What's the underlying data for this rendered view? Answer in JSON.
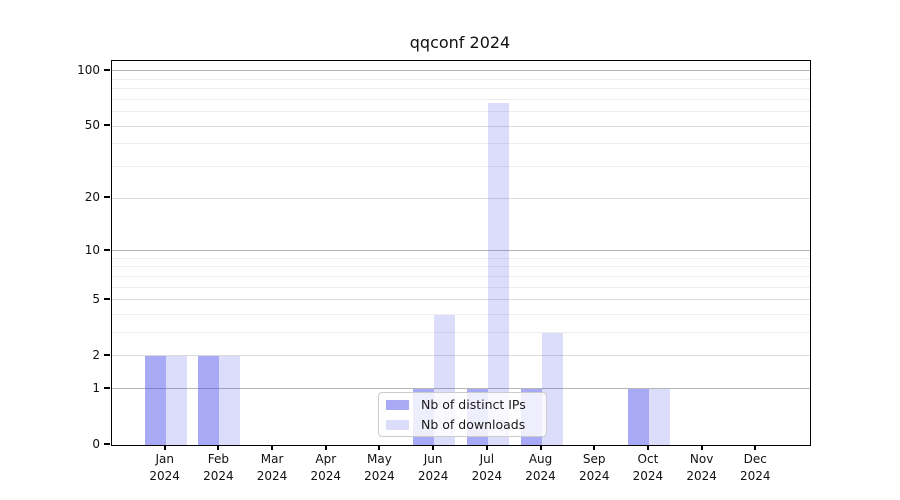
{
  "chart_data": {
    "type": "bar",
    "title": "qqconf 2024",
    "categories": [
      "Jan",
      "Feb",
      "Mar",
      "Apr",
      "May",
      "Jun",
      "Jul",
      "Aug",
      "Sep",
      "Oct",
      "Nov",
      "Dec"
    ],
    "year_label": "2024",
    "series": [
      {
        "name": "Nb of distinct IPs",
        "color": "rgba(62,66,233,0.45)",
        "values": [
          2,
          2,
          0,
          0,
          0,
          1,
          1,
          1,
          0,
          1,
          0,
          0
        ]
      },
      {
        "name": "Nb of downloads",
        "color": "rgba(62,66,233,0.18)",
        "values": [
          2,
          2,
          0,
          0,
          0,
          4,
          67,
          3,
          0,
          1,
          0,
          0
        ]
      }
    ],
    "y_axis": {
      "scale": "log1p",
      "tick_labels": [
        0,
        1,
        2,
        5,
        10,
        20,
        50,
        100
      ],
      "gridlines_decade": [
        1,
        10,
        100
      ],
      "gridlines_mid": [
        2,
        5,
        20,
        50
      ],
      "gridlines_minor": [
        3,
        4,
        6,
        7,
        8,
        9,
        30,
        40,
        60,
        70,
        80,
        90
      ],
      "ymax": 113
    },
    "xlabel": "",
    "ylabel": "",
    "legend_position": "bottom-center",
    "grid": true,
    "colors": {
      "bar_ips": "rgba(62,66,233,0.45)",
      "bar_downloads": "rgba(62,66,233,0.18)",
      "grid_decade": "#b6b6b6",
      "grid_mid": "#dcdcdc",
      "grid_minor": "#eeeeee",
      "axis": "#000000",
      "text": "#111111"
    }
  }
}
